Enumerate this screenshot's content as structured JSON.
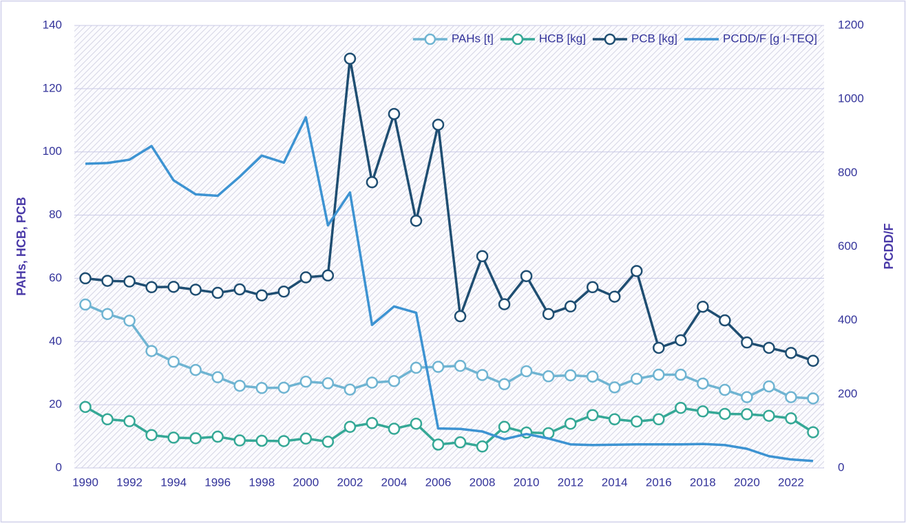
{
  "chart_data": {
    "type": "line",
    "x": [
      1990,
      1991,
      1992,
      1993,
      1994,
      1995,
      1996,
      1997,
      1998,
      1999,
      2000,
      2001,
      2002,
      2003,
      2004,
      2005,
      2006,
      2007,
      2008,
      2009,
      2010,
      2011,
      2012,
      2013,
      2014,
      2015,
      2016,
      2017,
      2018,
      2019,
      2020,
      2021,
      2022,
      2023
    ],
    "xlim": [
      1989.5,
      2023.5
    ],
    "xticks": [
      1990,
      1992,
      1994,
      1996,
      1998,
      2000,
      2002,
      2004,
      2006,
      2008,
      2010,
      2012,
      2014,
      2016,
      2018,
      2020,
      2022
    ],
    "ylim": [
      0,
      140
    ],
    "yticks": [
      0,
      20,
      40,
      60,
      80,
      100,
      120,
      140
    ],
    "y2lim": [
      0,
      1200
    ],
    "y2ticks": [
      0,
      200,
      400,
      600,
      800,
      1000,
      1200
    ],
    "ylabel": "PAHs, HCB, PCB",
    "y2label": "PCDD/F",
    "grid": true,
    "legend": "top-right",
    "series": [
      {
        "name": "PAHs [t]",
        "color": "#6fb4d2",
        "markers": true,
        "values": [
          51.7,
          48.7,
          46.6,
          37,
          33.6,
          31,
          28.7,
          26,
          25.3,
          25.4,
          27.3,
          26.8,
          24.8,
          27,
          27.5,
          31.7,
          32,
          32.3,
          29.4,
          26.5,
          30.6,
          29,
          29.3,
          28.9,
          25.5,
          28.2,
          29.5,
          29.5,
          26.7,
          24.7,
          22.4,
          25.8,
          22.4,
          22
        ]
      },
      {
        "name": "HCB [kg]",
        "color": "#35a896",
        "markers": true,
        "values": [
          19.3,
          15.4,
          14.8,
          10.4,
          9.6,
          9.4,
          9.9,
          8.7,
          8.6,
          8.5,
          9.3,
          8.3,
          13,
          14.2,
          12.4,
          14,
          7.4,
          8.1,
          6.8,
          13,
          11.2,
          11,
          14,
          16.7,
          15.4,
          14.7,
          15.4,
          19,
          17.9,
          17.1,
          17,
          16.5,
          15.7,
          11.3
        ]
      },
      {
        "name": "PCB [kg]",
        "color": "#1f4e72",
        "markers": true,
        "values": [
          60,
          59.2,
          59,
          57.2,
          57.3,
          56.4,
          55.4,
          56.5,
          54.6,
          55.8,
          60.3,
          60.9,
          129.5,
          90.4,
          112,
          78.2,
          108.6,
          48,
          67,
          51.8,
          60.7,
          48.7,
          51.1,
          57.2,
          54.2,
          62.3,
          38,
          40.4,
          51,
          46.7,
          39.7,
          38,
          36.4,
          33.9
        ]
      },
      {
        "name": "PCDD/F [g I-TEQ]",
        "color": "#3d93d2",
        "markers": false,
        "axis": "y2",
        "values": [
          825,
          827,
          836,
          873,
          780,
          742,
          738,
          790,
          847,
          828,
          951,
          658,
          747,
          388,
          438,
          421,
          107,
          106,
          99,
          78,
          92,
          80,
          64,
          62,
          63,
          64,
          64,
          64,
          65,
          62,
          52,
          32,
          23,
          19
        ]
      }
    ]
  }
}
